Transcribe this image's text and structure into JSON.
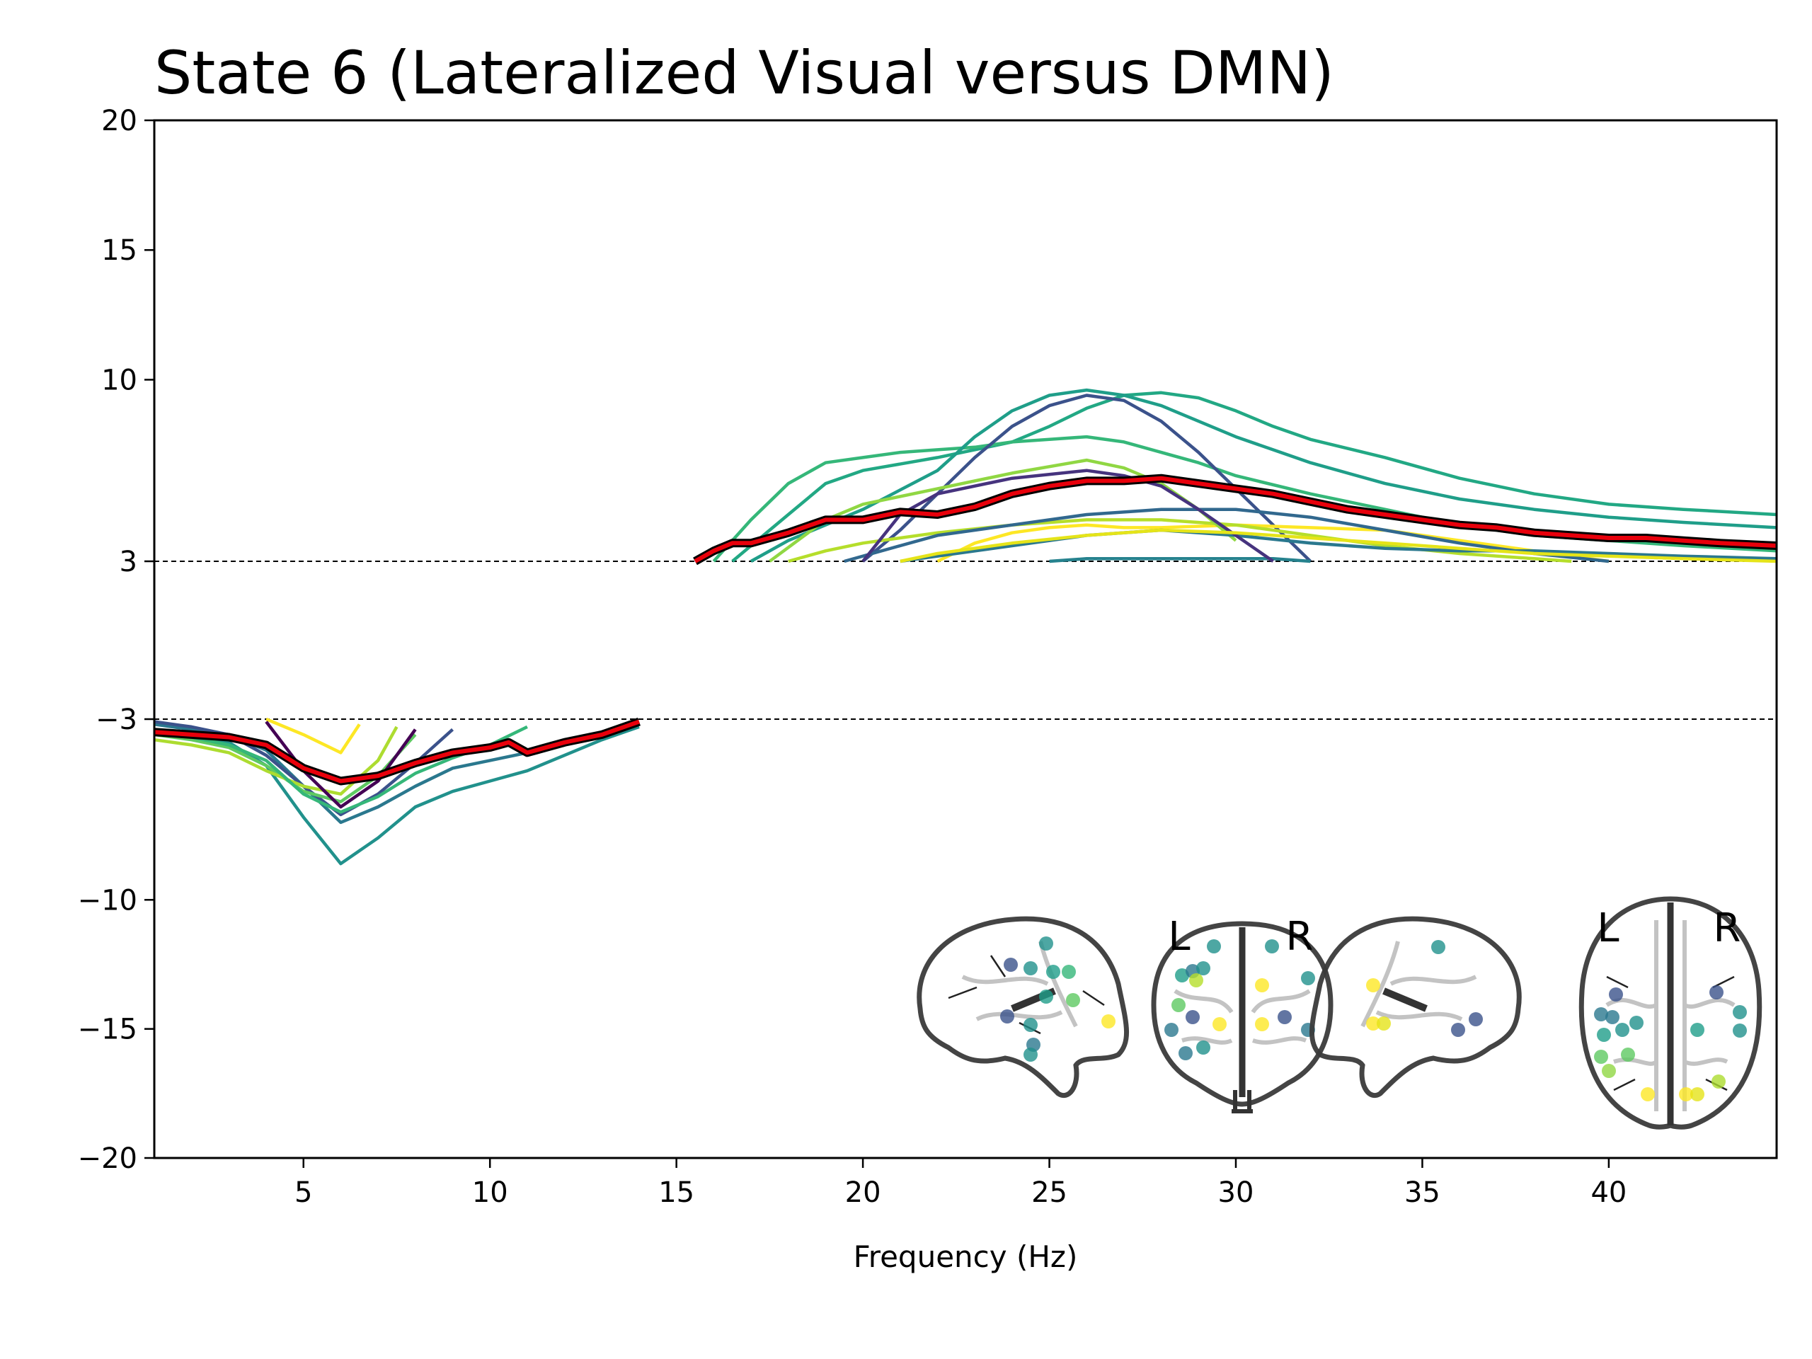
{
  "chart_data": {
    "type": "line",
    "title": "State 6 (Lateralized Visual versus DMN)",
    "xlabel": "Frequency (Hz)",
    "ylabel": "",
    "xlim": [
      1,
      44.5
    ],
    "ylim": [
      -20,
      20
    ],
    "x_ticks": [
      5,
      10,
      15,
      20,
      25,
      30,
      35,
      40
    ],
    "y_ticks": [
      20,
      15,
      10,
      3,
      -3,
      -10,
      -15,
      -20
    ],
    "y_tick_labels": [
      "20",
      "15",
      "10",
      "3",
      "−3",
      "−10",
      "−15",
      "−20"
    ],
    "y_scale": "symlog-like (compressed between -3 and 3)",
    "threshold_lines": [
      3,
      -3
    ],
    "grid": false,
    "legend": "none",
    "colormap": "viridis",
    "mean_line_color": "#e8000b",
    "mean_line_outline": "#000000",
    "brain_labels": {
      "left": "L",
      "right": "R"
    },
    "series": [
      {
        "role": "parcel",
        "color": "#2a788e",
        "x": [
          1,
          2,
          3,
          4,
          5,
          6,
          7,
          8,
          9,
          10,
          11,
          12,
          13,
          14
        ],
        "y": [
          -3.2,
          -3.4,
          -3.6,
          -4.2,
          -5.6,
          -7.0,
          -6.4,
          -5.6,
          -4.9,
          -4.6,
          -4.3,
          -4.0,
          -3.6,
          -3.2
        ]
      },
      {
        "role": "parcel",
        "color": "#21918c",
        "x": [
          1,
          2,
          3,
          4,
          5,
          6,
          7,
          8,
          9,
          10,
          11,
          12,
          13,
          14
        ],
        "y": [
          -3.4,
          -3.6,
          -3.9,
          -4.8,
          -6.8,
          -8.6,
          -7.6,
          -6.4,
          -5.8,
          -5.4,
          -5.0,
          -4.4,
          -3.8,
          -3.3
        ]
      },
      {
        "role": "parcel",
        "color": "#3b528b",
        "x": [
          1,
          2,
          3,
          4,
          5,
          6,
          7,
          8,
          9
        ],
        "y": [
          -3.1,
          -3.3,
          -3.6,
          -4.4,
          -5.6,
          -6.7,
          -5.9,
          -4.7,
          -3.4
        ]
      },
      {
        "role": "parcel",
        "color": "#5ec962",
        "x": [
          1,
          2,
          3,
          4,
          5,
          6,
          7,
          8
        ],
        "y": [
          -3.6,
          -3.8,
          -4.1,
          -4.8,
          -5.8,
          -6.2,
          -5.2,
          -3.6
        ]
      },
      {
        "role": "parcel",
        "color": "#addc30",
        "x": [
          1,
          2,
          3,
          4,
          5,
          6,
          7,
          7.5
        ],
        "y": [
          -3.8,
          -4.0,
          -4.3,
          -5.0,
          -5.6,
          -5.9,
          -4.6,
          -3.3
        ]
      },
      {
        "role": "parcel",
        "color": "#fde725",
        "x": [
          4,
          5,
          6,
          6.5
        ],
        "y": [
          -3.0,
          -3.6,
          -4.3,
          -3.2
        ]
      },
      {
        "role": "parcel",
        "color": "#35b779",
        "x": [
          1,
          2,
          3,
          4,
          5,
          6,
          7,
          8,
          9,
          10,
          11
        ],
        "y": [
          -3.5,
          -3.7,
          -4.0,
          -4.6,
          -5.9,
          -6.6,
          -6.0,
          -5.1,
          -4.5,
          -4.0,
          -3.3
        ]
      },
      {
        "role": "parcel",
        "color": "#440154",
        "x": [
          4,
          5,
          6,
          7,
          8
        ],
        "y": [
          -3.1,
          -5.0,
          -6.4,
          -5.4,
          -3.4
        ]
      },
      {
        "role": "parcel",
        "color": "#22a884",
        "x": [
          16.5,
          18,
          19,
          20,
          22,
          24,
          25,
          26,
          27,
          28,
          29,
          30,
          31,
          32,
          34,
          36,
          38,
          40,
          42,
          44.5
        ],
        "y": [
          3.0,
          4.8,
          6.0,
          6.5,
          7.0,
          7.6,
          8.2,
          8.9,
          9.4,
          9.5,
          9.3,
          8.8,
          8.2,
          7.7,
          7.0,
          6.2,
          5.6,
          5.2,
          5.0,
          4.8
        ]
      },
      {
        "role": "parcel",
        "color": "#35b779",
        "x": [
          16,
          17,
          18,
          19,
          20,
          21,
          22,
          23,
          24,
          25,
          26,
          27,
          28,
          29,
          30,
          32,
          34,
          36,
          38,
          40,
          42,
          44.5
        ],
        "y": [
          3.0,
          4.6,
          6.0,
          6.8,
          7.0,
          7.2,
          7.3,
          7.4,
          7.6,
          7.7,
          7.8,
          7.6,
          7.2,
          6.8,
          6.3,
          5.6,
          5.0,
          4.4,
          4.0,
          3.8,
          3.6,
          3.4
        ]
      },
      {
        "role": "parcel",
        "color": "#1f9e89",
        "x": [
          17,
          18,
          20,
          22,
          23,
          24,
          25,
          26,
          27,
          28,
          29,
          30,
          32,
          34,
          36,
          38,
          40,
          42,
          44.5
        ],
        "y": [
          3.0,
          3.8,
          5.0,
          6.5,
          7.8,
          8.8,
          9.4,
          9.6,
          9.4,
          9.0,
          8.4,
          7.8,
          6.8,
          6.0,
          5.4,
          5.0,
          4.7,
          4.5,
          4.3
        ]
      },
      {
        "role": "parcel",
        "color": "#3b528b",
        "x": [
          20,
          21,
          22,
          23,
          24,
          25,
          26,
          27,
          28,
          29,
          30,
          31,
          32
        ],
        "y": [
          3.0,
          4.2,
          5.6,
          7.0,
          8.2,
          9.0,
          9.4,
          9.2,
          8.4,
          7.2,
          5.8,
          4.4,
          3.0
        ]
      },
      {
        "role": "parcel",
        "color": "#fde725",
        "x": [
          22,
          23,
          24,
          25,
          26,
          27,
          28,
          30,
          32,
          34,
          36,
          38,
          40
        ],
        "y": [
          3.0,
          3.7,
          4.1,
          4.3,
          4.4,
          4.3,
          4.3,
          4.4,
          4.3,
          4.2,
          3.8,
          3.4,
          3.0
        ]
      },
      {
        "role": "parcel",
        "color": "#b5de2b",
        "x": [
          18,
          19,
          20,
          22,
          24,
          26,
          28,
          30,
          32,
          34,
          36,
          38,
          39
        ],
        "y": [
          3.0,
          3.4,
          3.7,
          4.1,
          4.4,
          4.6,
          4.6,
          4.4,
          4.0,
          3.6,
          3.3,
          3.1,
          3.0
        ]
      },
      {
        "role": "parcel",
        "color": "#90d743",
        "x": [
          17.5,
          19,
          20,
          22,
          24,
          26,
          27,
          28,
          29,
          30
        ],
        "y": [
          3.0,
          4.6,
          5.2,
          5.8,
          6.4,
          6.9,
          6.6,
          6.0,
          5.0,
          3.8
        ]
      },
      {
        "role": "parcel",
        "color": "#31688e",
        "x": [
          19.5,
          21,
          22,
          24,
          26,
          28,
          30,
          32,
          34,
          36,
          38,
          40
        ],
        "y": [
          3.0,
          3.6,
          4.0,
          4.4,
          4.8,
          5.0,
          5.0,
          4.7,
          4.2,
          3.7,
          3.3,
          3.0
        ]
      },
      {
        "role": "parcel",
        "color": "#26828e",
        "x": [
          25,
          26,
          27,
          28,
          29,
          30,
          31,
          32
        ],
        "y": [
          3.0,
          3.1,
          3.1,
          3.1,
          3.1,
          3.1,
          3.1,
          3.0
        ]
      },
      {
        "role": "parcel",
        "color": "#2a788e",
        "x": [
          21,
          22,
          24,
          26,
          28,
          30,
          32,
          34,
          36,
          38,
          40,
          42,
          44.5
        ],
        "y": [
          3.0,
          3.2,
          3.6,
          4.0,
          4.2,
          4.0,
          3.7,
          3.5,
          3.4,
          3.4,
          3.3,
          3.2,
          3.1
        ]
      },
      {
        "role": "parcel",
        "color": "#46337e",
        "x": [
          20,
          21,
          22,
          24,
          26,
          27,
          28,
          29,
          30,
          31
        ],
        "y": [
          3.0,
          4.8,
          5.6,
          6.2,
          6.5,
          6.3,
          5.9,
          5.0,
          4.0,
          3.0
        ]
      },
      {
        "role": "parcel",
        "color": "#e5e419",
        "x": [
          21,
          22,
          24,
          26,
          28,
          30,
          32,
          34,
          36,
          38,
          40,
          42,
          44.5
        ],
        "y": [
          3.0,
          3.3,
          3.7,
          4.0,
          4.2,
          4.1,
          3.9,
          3.7,
          3.5,
          3.3,
          3.2,
          3.1,
          3.0
        ]
      },
      {
        "role": "mean",
        "color": "#e8000b",
        "x": [
          1,
          2,
          3,
          4,
          5,
          6,
          7,
          8,
          9,
          10,
          10.5,
          11,
          12,
          13,
          14
        ],
        "y": [
          -3.5,
          -3.6,
          -3.7,
          -4.0,
          -4.9,
          -5.4,
          -5.2,
          -4.7,
          -4.3,
          -4.1,
          -3.9,
          -4.3,
          -3.9,
          -3.6,
          -3.1
        ]
      },
      {
        "role": "mean",
        "color": "#e8000b",
        "x": [
          15.5,
          16,
          16.5,
          17,
          18,
          19,
          20,
          21,
          22,
          23,
          24,
          25,
          26,
          27,
          28,
          29,
          30,
          31,
          32,
          33,
          34,
          35,
          36,
          37,
          38,
          39,
          40,
          41,
          42,
          43,
          44.5
        ],
        "y": [
          3.0,
          3.4,
          3.7,
          3.7,
          4.1,
          4.6,
          4.6,
          4.9,
          4.8,
          5.1,
          5.6,
          5.9,
          6.1,
          6.1,
          6.2,
          6.0,
          5.8,
          5.6,
          5.3,
          5.0,
          4.8,
          4.6,
          4.4,
          4.3,
          4.1,
          4.0,
          3.9,
          3.9,
          3.8,
          3.7,
          3.6
        ]
      }
    ]
  }
}
